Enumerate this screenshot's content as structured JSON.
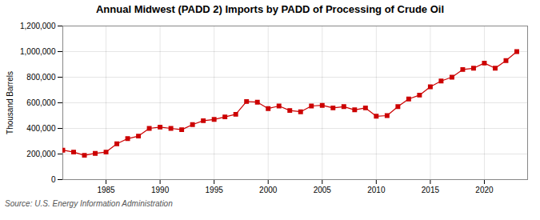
{
  "chart_data": {
    "type": "line",
    "title": "Annual Midwest (PADD 2) Imports by PADD of Processing of Crude Oil",
    "ylabel": "Thousand Barrels",
    "source": "Source: U.S. Energy Information Administration",
    "color": "#cc0000",
    "marker": "square",
    "line_style": "solid",
    "grid": true,
    "xlim": [
      1981,
      2024
    ],
    "ylim": [
      0,
      1200000
    ],
    "xticks": [
      1985,
      1990,
      1995,
      2000,
      2005,
      2010,
      2015,
      2020
    ],
    "yticks": [
      0,
      {
        "value": 200000,
        "label": "200,000"
      },
      {
        "value": 400000,
        "label": "400,000"
      },
      {
        "value": 600000,
        "label": "600,000"
      },
      {
        "value": 800000,
        "label": "800,000"
      },
      {
        "value": 1000000,
        "label": "1,000,000"
      },
      {
        "value": 1200000,
        "label": "1,200,000"
      }
    ],
    "x": [
      1981,
      1982,
      1983,
      1984,
      1985,
      1986,
      1987,
      1988,
      1989,
      1990,
      1991,
      1992,
      1993,
      1994,
      1995,
      1996,
      1997,
      1998,
      1999,
      2000,
      2001,
      2002,
      2003,
      2004,
      2005,
      2006,
      2007,
      2008,
      2009,
      2010,
      2011,
      2012,
      2013,
      2014,
      2015,
      2016,
      2017,
      2018,
      2019,
      2020,
      2021,
      2022,
      2023
    ],
    "values": [
      230000,
      215000,
      190000,
      205000,
      215000,
      280000,
      320000,
      340000,
      400000,
      410000,
      400000,
      390000,
      430000,
      460000,
      470000,
      490000,
      510000,
      610000,
      605000,
      555000,
      575000,
      540000,
      530000,
      575000,
      580000,
      560000,
      570000,
      545000,
      560000,
      495000,
      500000,
      570000,
      630000,
      660000,
      725000,
      770000,
      800000,
      860000,
      870000,
      910000,
      870000,
      930000,
      1000000
    ]
  }
}
